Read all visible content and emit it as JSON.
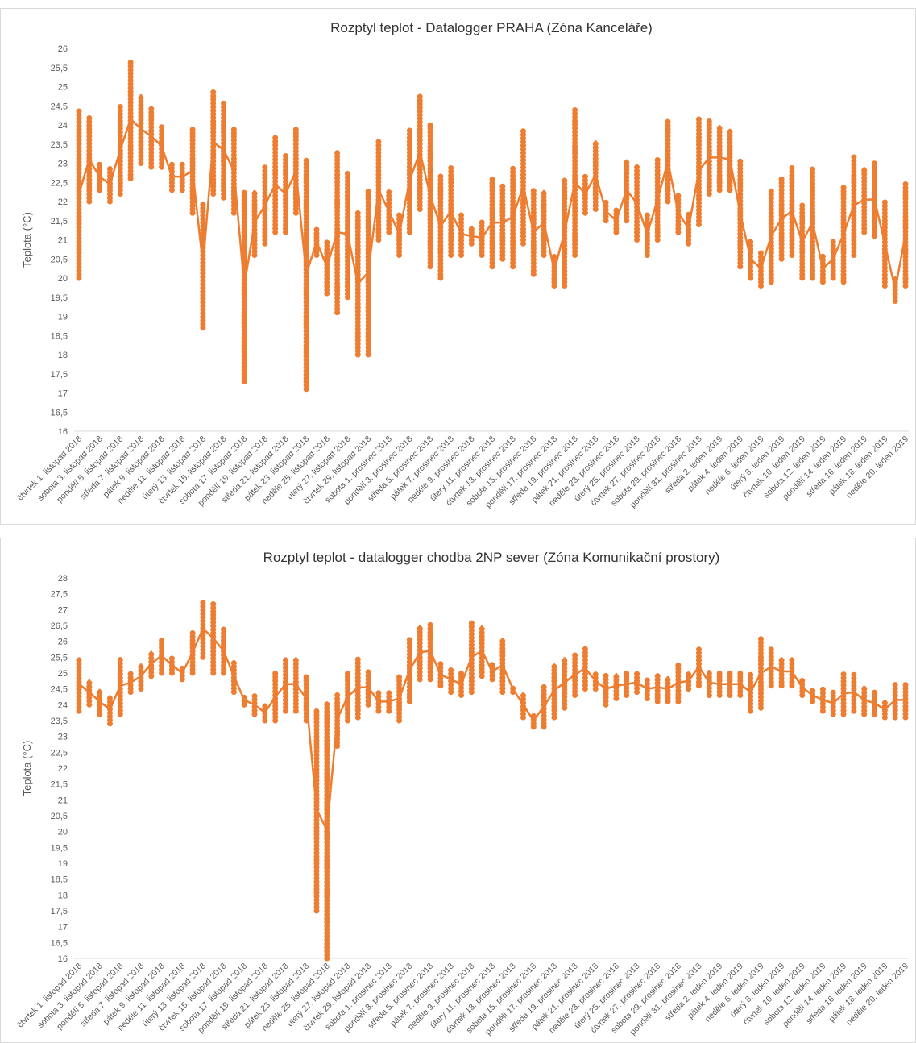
{
  "chart_data": [
    {
      "type": "range-dots",
      "title": "Rozptyl teplot - Datalogger PRAHA (Zóna Kanceláře)",
      "y_label": "Teplota (°C)",
      "color": "#ed7d31",
      "ylim": [
        16,
        26
      ],
      "yticks": [
        16,
        {
          "value": 16.5,
          "label": "16,5"
        },
        17,
        {
          "value": 17.5,
          "label": "17,5"
        },
        18,
        {
          "value": 18.5,
          "label": "18,5"
        },
        19,
        {
          "value": 19.5,
          "label": "19,5"
        },
        20,
        {
          "value": 20.5,
          "label": "20,5"
        },
        21,
        {
          "value": 21.5,
          "label": "21,5"
        },
        22,
        {
          "value": 22.5,
          "label": "22,5"
        },
        23,
        {
          "value": 23.5,
          "label": "23,5"
        },
        24,
        {
          "value": 24.5,
          "label": "24,5"
        },
        25,
        {
          "value": 25.5,
          "label": "25,5"
        },
        26
      ],
      "categories": [
        "čtvrtek 1. listopad 2018",
        null,
        "sobota 3. listopad 2018",
        null,
        "pondělí 5. listopad 2018",
        null,
        "středa 7. listopad 2018",
        null,
        "pátek 9. listopad 2018",
        null,
        "neděle 11. listopad 2018",
        null,
        "úterý 13. listopad 2018",
        null,
        "čtvrtek 15. listopad 2018",
        null,
        "sobota 17. listopad 2018",
        null,
        "pondělí 19. listopad 2018",
        null,
        "středa 21. listopad 2018",
        null,
        "pátek 23. listopad 2018",
        null,
        "neděle 25. listopad 2018",
        null,
        "úterý 27. listopad 2018",
        null,
        "čtvrtek 29. listopad 2018",
        null,
        "sobota 1. prosinec 2018",
        null,
        "pondělí 3. prosinec 2018",
        null,
        "středa 5. prosinec 2018",
        null,
        "pátek 7. prosinec 2018",
        null,
        "neděle 9. prosinec 2018",
        null,
        "úterý 11. prosinec 2018",
        null,
        "čtvrtek 13. prosinec 2018",
        null,
        "sobota 15. prosinec 2018",
        null,
        "pondělí 17. prosinec 2018",
        null,
        "středa 19. prosinec 2018",
        null,
        "pátek 21. prosinec 2018",
        null,
        "neděle 23. prosinec 2018",
        null,
        "úterý 25. prosinec 2018",
        null,
        "čtvrtek 27. prosinec 2018",
        null,
        "sobota 29. prosinec 2018",
        null,
        "pondělí 31. prosinec 2018",
        null,
        "středa 2. leden 2019",
        null,
        "pátek 4. leden 2019",
        null,
        "neděle 6. leden 2019",
        null,
        "úterý 8. leden 2019",
        null,
        "čtvrtek 10. leden 2019",
        null,
        "sobota 12. leden 2019",
        null,
        "pondělí 14. leden 2019",
        null,
        "středa 16. leden 2019",
        null,
        "pátek 18. leden 2019",
        null,
        "neděle 20. leden 2019"
      ],
      "ranges": [
        [
          20,
          24.4
        ],
        [
          22,
          24.2
        ],
        [
          22.3,
          23
        ],
        [
          22,
          22.9
        ],
        [
          22.2,
          24.5
        ],
        [
          22.6,
          25.7
        ],
        [
          23,
          24.8
        ],
        [
          22.9,
          24.5
        ],
        [
          22.9,
          24
        ],
        [
          22.3,
          23
        ],
        [
          22.3,
          23
        ],
        [
          21.7,
          23.9
        ],
        [
          18.7,
          22
        ],
        [
          22.2,
          24.9
        ],
        [
          22.1,
          24.6
        ],
        [
          21.7,
          23.9
        ],
        [
          17.3,
          22.3
        ],
        [
          20.6,
          22.3
        ],
        [
          20.9,
          22.9
        ],
        [
          21.2,
          23.7
        ],
        [
          21.2,
          23.2
        ],
        [
          21.7,
          23.9
        ],
        [
          17.1,
          23.1
        ],
        [
          20.6,
          21.3
        ],
        [
          19.6,
          21
        ],
        [
          19.1,
          23.3
        ],
        [
          19.5,
          22.8
        ],
        [
          18,
          21.7
        ],
        [
          18,
          22.3
        ],
        [
          21,
          23.6
        ],
        [
          21.2,
          22.3
        ],
        [
          20.6,
          21.7
        ],
        [
          21.2,
          23.9
        ],
        [
          21.8,
          24.8
        ],
        [
          20.3,
          24
        ],
        [
          20,
          22.7
        ],
        [
          20.6,
          22.9
        ],
        [
          20.6,
          21.7
        ],
        [
          20.9,
          21.3
        ],
        [
          20.6,
          21.5
        ],
        [
          20.3,
          22.6
        ],
        [
          20.5,
          22.4
        ],
        [
          20.3,
          22.9
        ],
        [
          20.9,
          23.9
        ],
        [
          20.1,
          22.3
        ],
        [
          20.6,
          22.3
        ],
        [
          19.8,
          20.6
        ],
        [
          19.8,
          22.6
        ],
        [
          20.6,
          24.4
        ],
        [
          21.7,
          22.7
        ],
        [
          21.8,
          23.6
        ],
        [
          21.5,
          22
        ],
        [
          21.2,
          21.8
        ],
        [
          21.5,
          23.1
        ],
        [
          21,
          22.9
        ],
        [
          20.6,
          21.7
        ],
        [
          21,
          23.1
        ],
        [
          22,
          24.1
        ],
        [
          21.2,
          22.2
        ],
        [
          20.9,
          21.7
        ],
        [
          21.4,
          24.2
        ],
        [
          22.2,
          24.1
        ],
        [
          22.3,
          24
        ],
        [
          22.3,
          23.9
        ],
        [
          20.3,
          23.1
        ],
        [
          20,
          21
        ],
        [
          19.8,
          20.7
        ],
        [
          19.9,
          22.3
        ],
        [
          20.5,
          22.6
        ],
        [
          20.6,
          22.9
        ],
        [
          20,
          21.9
        ],
        [
          20,
          22.9
        ],
        [
          19.9,
          20.6
        ],
        [
          20,
          21
        ],
        [
          19.9,
          22.4
        ],
        [
          20.6,
          23.2
        ],
        [
          21.2,
          22.9
        ],
        [
          21.1,
          23
        ],
        [
          19.8,
          22
        ],
        [
          19.4,
          20
        ],
        [
          19.8,
          22.5
        ]
      ]
    },
    {
      "type": "range-dots",
      "title": "Rozptyl teplot - datalogger chodba 2NP sever (Zóna Komunikační prostory)",
      "y_label": "Teplota (°C)",
      "color": "#ed7d31",
      "ylim": [
        16,
        28
      ],
      "yticks": [
        16,
        {
          "value": 16.5,
          "label": "16,5"
        },
        17,
        {
          "value": 17.5,
          "label": "17,5"
        },
        18,
        {
          "value": 18.5,
          "label": "18,5"
        },
        19,
        {
          "value": 19.5,
          "label": "19,5"
        },
        20,
        {
          "value": 20.5,
          "label": "20,5"
        },
        21,
        {
          "value": 21.5,
          "label": "21,5"
        },
        22,
        {
          "value": 22.5,
          "label": "22,5"
        },
        23,
        {
          "value": 23.5,
          "label": "23,5"
        },
        24,
        {
          "value": 24.5,
          "label": "24,5"
        },
        25,
        {
          "value": 25.5,
          "label": "25,5"
        },
        26,
        {
          "value": 26.5,
          "label": "26,5"
        },
        27,
        {
          "value": 27.5,
          "label": "27,5"
        },
        28
      ],
      "categories": [
        "čtvrtek 1. listopad 2018",
        null,
        "sobota 3. listopad 2018",
        null,
        "pondělí 5. listopad 2018",
        null,
        "středa 7. listopad 2018",
        null,
        "pátek 9. listopad 2018",
        null,
        "neděle 11. listopad 2018",
        null,
        "úterý 13. listopad 2018",
        null,
        "čtvrtek 15. listopad 2018",
        null,
        "sobota 17. listopad 2018",
        null,
        "pondělí 19. listopad 2018",
        null,
        "středa 21. listopad 2018",
        null,
        "pátek 23. listopad 2018",
        null,
        "neděle 25. listopad 2018",
        null,
        "úterý 27. listopad 2018",
        null,
        "čtvrtek 29. listopad 2018",
        null,
        "sobota 1. prosinec 2018",
        null,
        "pondělí 3. prosinec 2018",
        null,
        "středa 5. prosinec 2018",
        null,
        "pátek 7. prosinec 2018",
        null,
        "neděle 9. prosinec 2018",
        null,
        "úterý 11. prosinec 2018",
        null,
        "čtvrtek 13. prosinec 2018",
        null,
        "sobota 15. prosinec 2018",
        null,
        "pondělí 17. prosinec 2018",
        null,
        "středa 19. prosinec 2018",
        null,
        "pátek 21. prosinec 2018",
        null,
        "neděle 23. prosinec 2018",
        null,
        "úterý 25. prosinec 2018",
        null,
        "čtvrtek 27. prosinec 2018",
        null,
        "sobota 29. prosinec 2018",
        null,
        "pondělí 31. prosinec 2018",
        null,
        "středa 2. leden 2019",
        null,
        "pátek 4. leden 2019",
        null,
        "neděle 6. leden 2019",
        null,
        "úterý 8. leden 2019",
        null,
        "čtvrtek 10. leden 2019",
        null,
        "sobota 12. leden 2019",
        null,
        "pondělí 14. leden 2019",
        null,
        "středa 16. leden 2019",
        null,
        "pátek 18. leden 2019",
        null,
        "neděle 20. leden 2019"
      ],
      "ranges": [
        [
          23.8,
          25.5
        ],
        [
          24,
          24.8
        ],
        [
          23.7,
          24.5
        ],
        [
          23.4,
          24.3
        ],
        [
          23.7,
          25.5
        ],
        [
          24.4,
          25
        ],
        [
          24.5,
          25.3
        ],
        [
          24.9,
          25.7
        ],
        [
          25,
          26.1
        ],
        [
          25,
          25.5
        ],
        [
          24.8,
          25.2
        ],
        [
          25,
          26.3
        ],
        [
          25.5,
          27.3
        ],
        [
          25,
          27.2
        ],
        [
          25,
          26.4
        ],
        [
          24.4,
          25.4
        ],
        [
          24,
          24.3
        ],
        [
          23.7,
          24.3
        ],
        [
          23.5,
          24
        ],
        [
          23.5,
          25
        ],
        [
          23.8,
          25.5
        ],
        [
          23.8,
          25.5
        ],
        [
          23.5,
          24.9
        ],
        [
          17.5,
          23.9
        ],
        [
          16,
          24.1
        ],
        [
          22.7,
          24.4
        ],
        [
          23.5,
          25
        ],
        [
          23.6,
          25.5
        ],
        [
          24,
          25.1
        ],
        [
          23.8,
          24.4
        ],
        [
          23.8,
          24.4
        ],
        [
          23.5,
          24.9
        ],
        [
          24.1,
          26.1
        ],
        [
          24.8,
          26.5
        ],
        [
          24.8,
          26.6
        ],
        [
          24.6,
          25.3
        ],
        [
          24.4,
          25.2
        ],
        [
          24.3,
          25
        ],
        [
          24.4,
          26.6
        ],
        [
          24.9,
          26.5
        ],
        [
          24.8,
          25.3
        ],
        [
          24.4,
          26.1
        ],
        [
          24.4,
          24.6
        ],
        [
          23.6,
          24.4
        ],
        [
          23.3,
          23.7
        ],
        [
          23.3,
          24.6
        ],
        [
          23.6,
          25.3
        ],
        [
          23.9,
          25.5
        ],
        [
          24.3,
          25.6
        ],
        [
          24.5,
          25.8
        ],
        [
          24.5,
          25
        ],
        [
          24,
          25
        ],
        [
          24.2,
          25
        ],
        [
          24.3,
          25
        ],
        [
          24.4,
          25
        ],
        [
          24.2,
          24.8
        ],
        [
          24.1,
          25
        ],
        [
          24.1,
          24.9
        ],
        [
          24.1,
          25.3
        ],
        [
          24.5,
          25
        ],
        [
          24.6,
          25.8
        ],
        [
          24.3,
          25.1
        ],
        [
          24.3,
          25
        ],
        [
          24.3,
          25
        ],
        [
          24.3,
          25
        ],
        [
          23.8,
          25
        ],
        [
          23.9,
          26.1
        ],
        [
          24.6,
          25.8
        ],
        [
          24.6,
          25.5
        ],
        [
          24.6,
          25.5
        ],
        [
          24.3,
          24.8
        ],
        [
          24.1,
          24.5
        ],
        [
          23.8,
          24.5
        ],
        [
          23.7,
          24.4
        ],
        [
          23.7,
          25
        ],
        [
          23.8,
          25
        ],
        [
          23.7,
          24.6
        ],
        [
          23.7,
          24.4
        ],
        [
          23.6,
          24.1
        ],
        [
          23.6,
          24.7
        ],
        [
          23.6,
          24.7
        ]
      ]
    }
  ]
}
